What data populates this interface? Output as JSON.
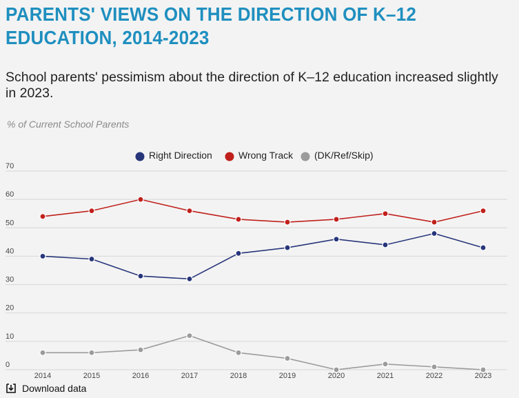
{
  "header": {
    "title": "PARENTS' VIEWS ON THE DIRECTION OF K–12 EDUCATION, 2014-2023",
    "subtitle": "School parents' pessimism about the direction of K–12 education increased slightly in 2023.",
    "unit_note": "% of Current School Parents"
  },
  "footer": {
    "download_label": "Download data",
    "download_icon": "download-icon"
  },
  "colors": {
    "title": "#1f8fbf",
    "right_direction": "#27357a",
    "wrong_track": "#c0201b",
    "dk": "#9b9b9b",
    "grid": "#d6d6d6"
  },
  "chart_data": {
    "type": "line",
    "x": [
      "2014",
      "2015",
      "2016",
      "2017",
      "2018",
      "2019",
      "2020",
      "2021",
      "2022",
      "2023"
    ],
    "ylim": [
      0,
      70
    ],
    "yticks": [
      0,
      10,
      20,
      30,
      40,
      50,
      60,
      70
    ],
    "grid": true,
    "legend_position": "top-center",
    "series": [
      {
        "name": "Right Direction",
        "color": "#27357a",
        "values": [
          40,
          39,
          33,
          32,
          41,
          43,
          46,
          44,
          48,
          43
        ]
      },
      {
        "name": "Wrong Track",
        "color": "#c0201b",
        "values": [
          54,
          56,
          60,
          56,
          53,
          52,
          53,
          55,
          52,
          56
        ]
      },
      {
        "name": "(DK/Ref/Skip)",
        "color": "#9b9b9b",
        "values": [
          6,
          6,
          7,
          12,
          6,
          4,
          0,
          2,
          1,
          0
        ]
      }
    ]
  }
}
